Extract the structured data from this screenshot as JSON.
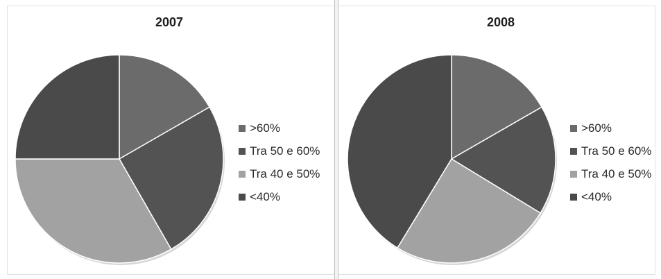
{
  "colors": {
    "above_60": "#6b6b6b",
    "between_50_60": "#535353",
    "between_40_50": "#a2a2a2",
    "below_40": "#4a4a4a",
    "slice_border": "#ffffff"
  },
  "chart_data": [
    {
      "type": "pie",
      "title": "2007",
      "categories": [
        ">60%",
        "Tra 50 e 60%",
        "Tra 40 e 50%",
        "<40%"
      ],
      "values": [
        16.7,
        25.0,
        33.3,
        25.0
      ],
      "legend_position": "right"
    },
    {
      "type": "pie",
      "title": "2008",
      "categories": [
        ">60%",
        "Tra 50 e 60%",
        "Tra 40 e 50%",
        "<40%"
      ],
      "values": [
        16.7,
        17.0,
        25.0,
        41.3
      ],
      "legend_position": "right"
    }
  ]
}
